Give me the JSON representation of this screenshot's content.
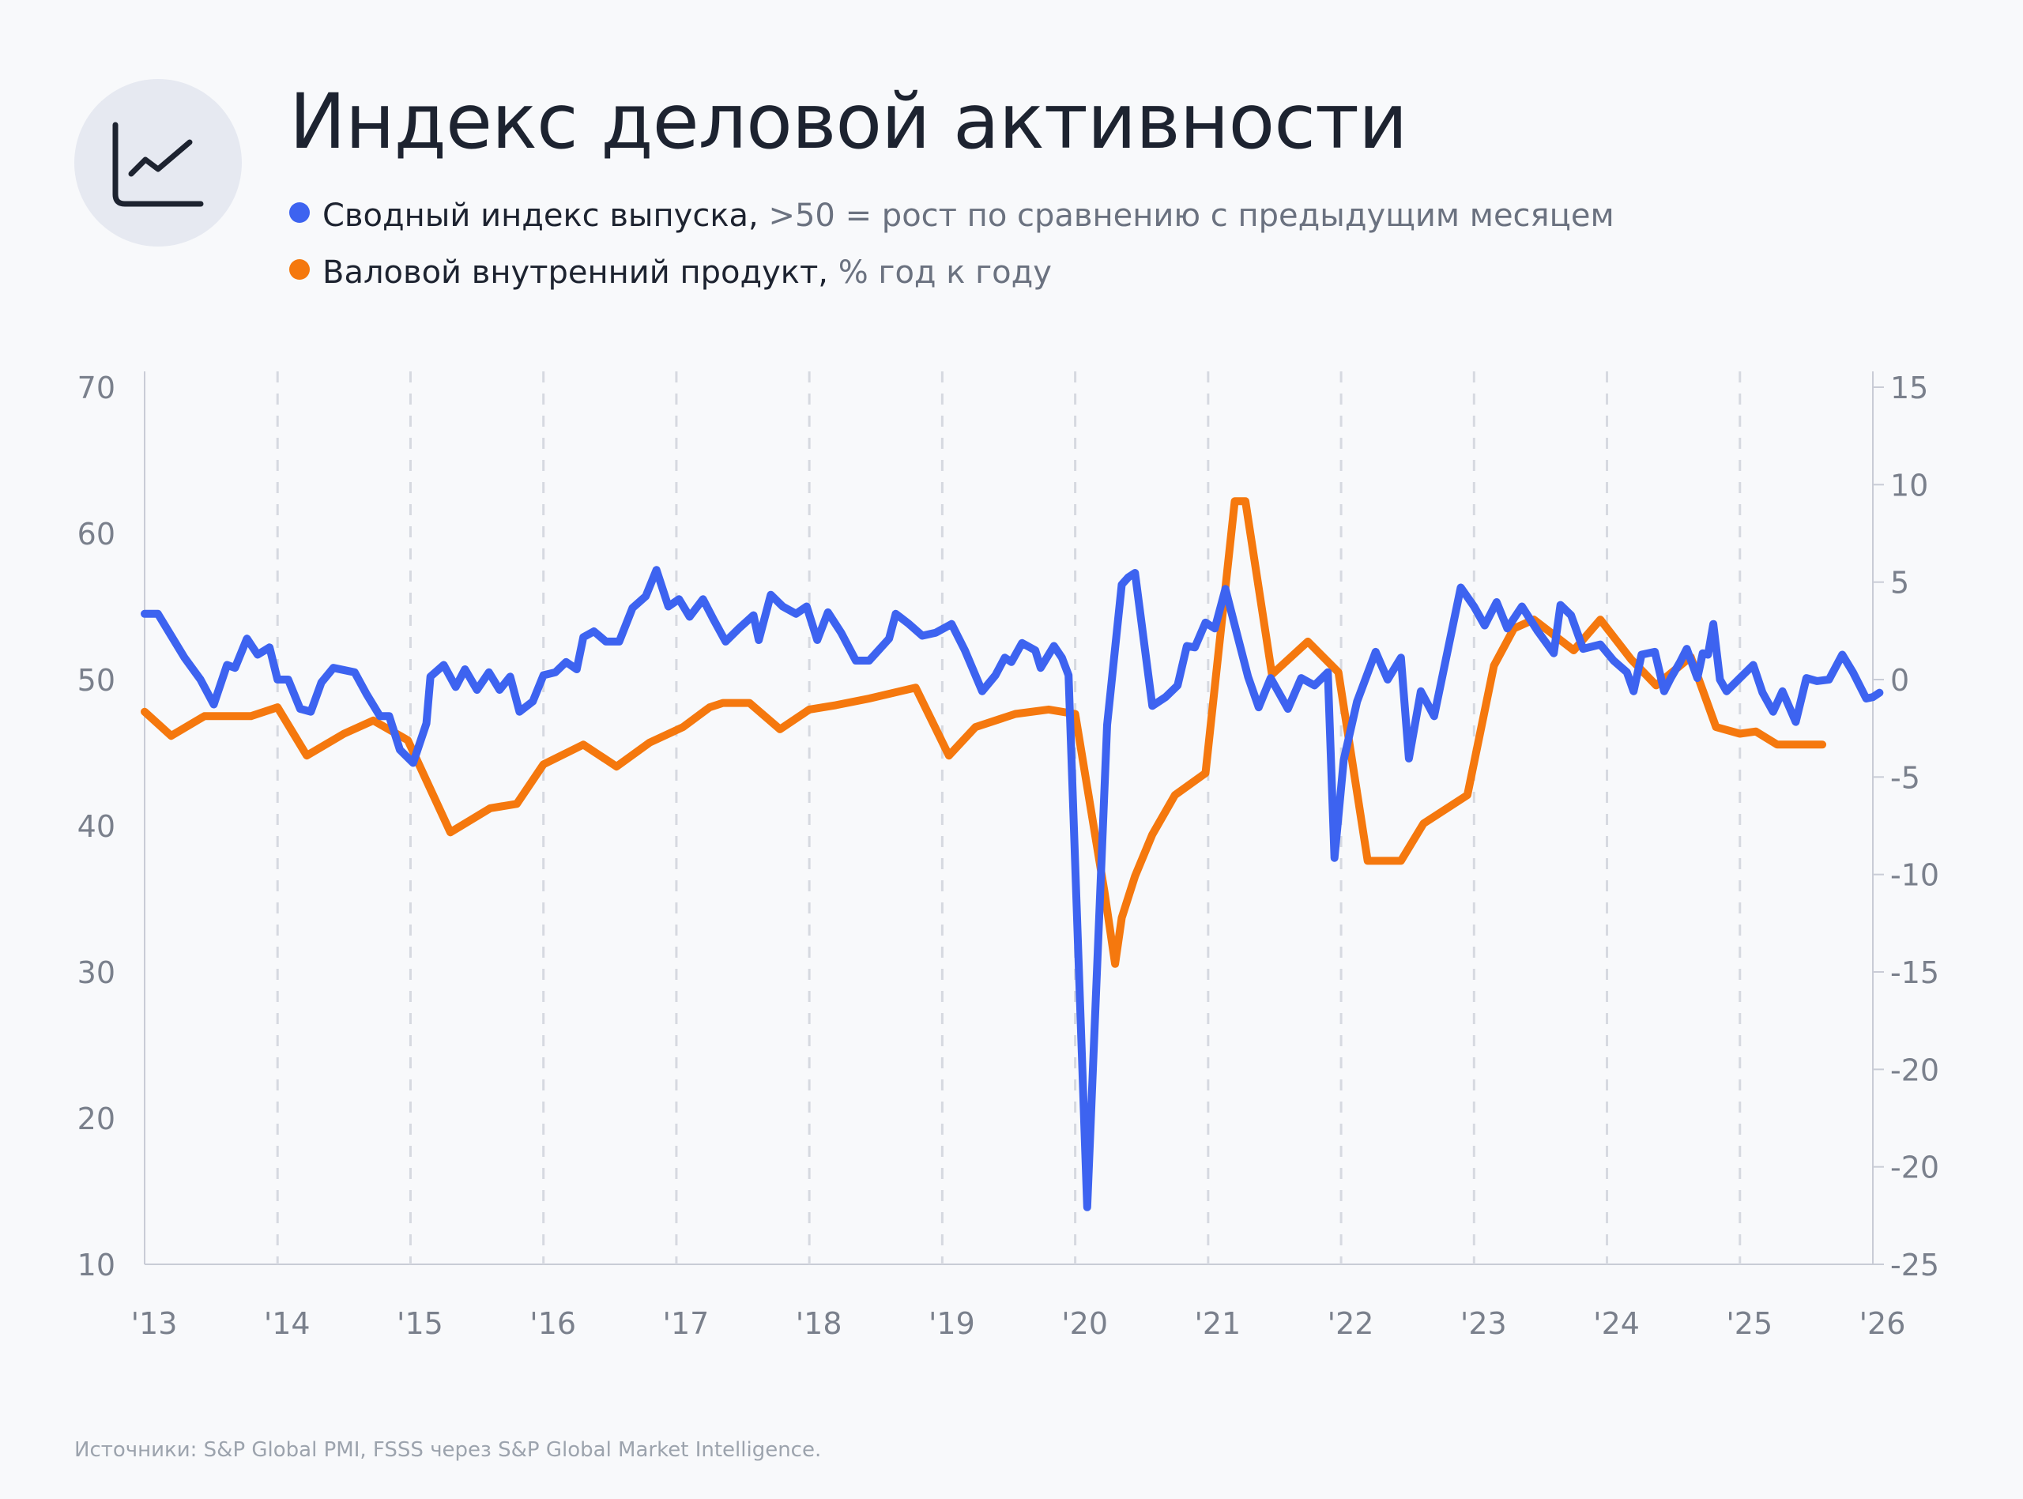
{
  "header": {
    "title": "Индекс деловой активности",
    "logo_icon": "line-chart-icon"
  },
  "legend": [
    {
      "label": "Сводный индекс выпуска,",
      "note": ">50 = рост по сравнению с предыдущим месяцем",
      "color": "#3d63f0"
    },
    {
      "label": "Валовой внутренний продукт,",
      "note": "% год к году",
      "color": "#f5780e"
    }
  ],
  "footer": {
    "source": "Источники: S&P Global PMI, FSSS через S&P Global Market Intelligence."
  },
  "chart_data": {
    "type": "line",
    "x_tick_labels": [
      "'13",
      "'14",
      "'15",
      "'16",
      "'17",
      "'18",
      "'19",
      "'20",
      "'21",
      "'22",
      "'23",
      "'24",
      "'25",
      "'26"
    ],
    "x_range": [
      2013.0,
      2026.0
    ],
    "grid": "vertical dashed lines at each year",
    "y_left": {
      "range": [
        10,
        70
      ],
      "ticks": [
        "70",
        "60",
        "50",
        "40",
        "30",
        "20",
        "10"
      ]
    },
    "y_right": {
      "range": [
        -25,
        15
      ],
      "ticks": [
        "15",
        "10",
        "5",
        "0",
        "-5",
        "-10",
        "-15",
        "-20",
        "-20",
        "-25"
      ]
    },
    "series": [
      {
        "name": "Сводный индекс выпуска",
        "axis": "left",
        "color": "#3d63f0",
        "points": [
          [
            2013.0,
            54.5
          ],
          [
            2013.1,
            54.5
          ],
          [
            2013.2,
            53.0
          ],
          [
            2013.3,
            51.5
          ],
          [
            2013.42,
            50.0
          ],
          [
            2013.52,
            48.3
          ],
          [
            2013.62,
            51.0
          ],
          [
            2013.68,
            50.8
          ],
          [
            2013.77,
            52.8
          ],
          [
            2013.85,
            51.7
          ],
          [
            2013.94,
            52.2
          ],
          [
            2014.0,
            50.0
          ],
          [
            2014.08,
            50.0
          ],
          [
            2014.17,
            48.0
          ],
          [
            2014.25,
            47.8
          ],
          [
            2014.33,
            49.8
          ],
          [
            2014.42,
            50.8
          ],
          [
            2014.58,
            50.5
          ],
          [
            2014.67,
            49.0
          ],
          [
            2014.77,
            47.5
          ],
          [
            2014.84,
            47.5
          ],
          [
            2014.92,
            45.2
          ],
          [
            2015.02,
            44.3
          ],
          [
            2015.12,
            47.0
          ],
          [
            2015.15,
            50.2
          ],
          [
            2015.25,
            51.0
          ],
          [
            2015.34,
            49.5
          ],
          [
            2015.41,
            50.7
          ],
          [
            2015.5,
            49.3
          ],
          [
            2015.59,
            50.5
          ],
          [
            2015.67,
            49.3
          ],
          [
            2015.75,
            50.2
          ],
          [
            2015.82,
            47.8
          ],
          [
            2015.92,
            48.5
          ],
          [
            2016.0,
            50.3
          ],
          [
            2016.09,
            50.5
          ],
          [
            2016.17,
            51.2
          ],
          [
            2016.25,
            50.7
          ],
          [
            2016.3,
            52.9
          ],
          [
            2016.38,
            53.3
          ],
          [
            2016.47,
            52.6
          ],
          [
            2016.57,
            52.6
          ],
          [
            2016.67,
            54.9
          ],
          [
            2016.77,
            55.7
          ],
          [
            2016.85,
            57.5
          ],
          [
            2016.94,
            55.0
          ],
          [
            2017.02,
            55.5
          ],
          [
            2017.1,
            54.3
          ],
          [
            2017.2,
            55.5
          ],
          [
            2017.28,
            54.1
          ],
          [
            2017.37,
            52.6
          ],
          [
            2017.47,
            53.5
          ],
          [
            2017.58,
            54.4
          ],
          [
            2017.62,
            52.7
          ],
          [
            2017.71,
            55.8
          ],
          [
            2017.8,
            55.0
          ],
          [
            2017.9,
            54.5
          ],
          [
            2017.98,
            55.0
          ],
          [
            2018.06,
            52.7
          ],
          [
            2018.14,
            54.6
          ],
          [
            2018.24,
            53.2
          ],
          [
            2018.35,
            51.3
          ],
          [
            2018.45,
            51.3
          ],
          [
            2018.6,
            52.8
          ],
          [
            2018.65,
            54.5
          ],
          [
            2018.75,
            53.8
          ],
          [
            2018.85,
            53.0
          ],
          [
            2018.95,
            53.2
          ],
          [
            2019.07,
            53.8
          ],
          [
            2019.17,
            52.0
          ],
          [
            2019.3,
            49.2
          ],
          [
            2019.4,
            50.3
          ],
          [
            2019.47,
            51.5
          ],
          [
            2019.52,
            51.2
          ],
          [
            2019.6,
            52.5
          ],
          [
            2019.7,
            52.0
          ],
          [
            2019.74,
            50.8
          ],
          [
            2019.84,
            52.3
          ],
          [
            2019.9,
            51.5
          ],
          [
            2019.95,
            50.3
          ],
          [
            2020.09,
            13.9
          ],
          [
            2020.24,
            46.9
          ],
          [
            2020.35,
            56.5
          ],
          [
            2020.4,
            57.0
          ],
          [
            2020.45,
            57.3
          ],
          [
            2020.58,
            48.2
          ],
          [
            2020.68,
            48.8
          ],
          [
            2020.77,
            49.6
          ],
          [
            2020.84,
            52.3
          ],
          [
            2020.9,
            52.2
          ],
          [
            2020.98,
            53.9
          ],
          [
            2021.05,
            53.5
          ],
          [
            2021.13,
            56.2
          ],
          [
            2021.22,
            53.0
          ],
          [
            2021.3,
            50.2
          ],
          [
            2021.38,
            48.1
          ],
          [
            2021.47,
            50.1
          ],
          [
            2021.6,
            48.0
          ],
          [
            2021.7,
            50.1
          ],
          [
            2021.8,
            49.6
          ],
          [
            2021.9,
            50.5
          ],
          [
            2021.95,
            37.8
          ],
          [
            2022.02,
            44.5
          ],
          [
            2022.12,
            48.5
          ],
          [
            2022.26,
            51.9
          ],
          [
            2022.35,
            50.0
          ],
          [
            2022.45,
            51.5
          ],
          [
            2022.51,
            44.6
          ],
          [
            2022.6,
            49.2
          ],
          [
            2022.7,
            47.5
          ],
          [
            2022.9,
            56.3
          ],
          [
            2023.0,
            55.0
          ],
          [
            2023.08,
            53.7
          ],
          [
            2023.17,
            55.3
          ],
          [
            2023.25,
            53.5
          ],
          [
            2023.36,
            55.0
          ],
          [
            2023.48,
            53.3
          ],
          [
            2023.6,
            51.8
          ],
          [
            2023.65,
            55.1
          ],
          [
            2023.73,
            54.4
          ],
          [
            2023.82,
            52.1
          ],
          [
            2023.95,
            52.4
          ],
          [
            2024.05,
            51.3
          ],
          [
            2024.15,
            50.5
          ],
          [
            2024.2,
            49.2
          ],
          [
            2024.26,
            51.7
          ],
          [
            2024.36,
            51.9
          ],
          [
            2024.43,
            49.2
          ],
          [
            2024.48,
            50.1
          ],
          [
            2024.55,
            51.2
          ],
          [
            2024.6,
            52.1
          ],
          [
            2024.68,
            50.1
          ],
          [
            2024.72,
            51.8
          ],
          [
            2024.76,
            51.7
          ],
          [
            2024.8,
            53.8
          ],
          [
            2024.85,
            50.0
          ],
          [
            2024.9,
            49.2
          ],
          [
            2025.0,
            50.1
          ],
          [
            2025.1,
            51.0
          ],
          [
            2025.17,
            49.1
          ],
          [
            2025.25,
            47.8
          ],
          [
            2025.32,
            49.2
          ],
          [
            2025.42,
            47.1
          ],
          [
            2025.5,
            50.1
          ],
          [
            2025.58,
            49.9
          ],
          [
            2025.67,
            50.0
          ],
          [
            2025.77,
            51.7
          ],
          [
            2025.85,
            50.5
          ],
          [
            2025.95,
            48.7
          ],
          [
            2026.0,
            48.8
          ],
          [
            2026.05,
            49.1
          ]
        ]
      },
      {
        "name": "Валовой внутренний продукт",
        "axis": "right",
        "color": "#f5780e",
        "points": [
          [
            2013.0,
            0.2
          ],
          [
            2013.2,
            -0.9
          ],
          [
            2013.45,
            0.0
          ],
          [
            2013.8,
            0.0
          ],
          [
            2014.0,
            0.4
          ],
          [
            2014.22,
            -1.8
          ],
          [
            2014.5,
            -0.8
          ],
          [
            2014.72,
            -0.2
          ],
          [
            2014.98,
            -1.1
          ],
          [
            2015.3,
            -5.3
          ],
          [
            2015.6,
            -4.2
          ],
          [
            2015.8,
            -4.0
          ],
          [
            2016.0,
            -2.2
          ],
          [
            2016.3,
            -1.3
          ],
          [
            2016.55,
            -2.3
          ],
          [
            2016.8,
            -1.2
          ],
          [
            2017.05,
            -0.5
          ],
          [
            2017.25,
            0.4
          ],
          [
            2017.35,
            0.6
          ],
          [
            2017.55,
            0.6
          ],
          [
            2017.78,
            -0.6
          ],
          [
            2018.0,
            0.3
          ],
          [
            2018.2,
            0.5
          ],
          [
            2018.45,
            0.8
          ],
          [
            2018.8,
            1.3
          ],
          [
            2019.05,
            -1.8
          ],
          [
            2019.25,
            -0.5
          ],
          [
            2019.55,
            0.1
          ],
          [
            2019.8,
            0.3
          ],
          [
            2020.0,
            0.1
          ],
          [
            2020.22,
            -8.0
          ],
          [
            2020.3,
            -11.3
          ],
          [
            2020.35,
            -9.2
          ],
          [
            2020.45,
            -7.3
          ],
          [
            2020.58,
            -5.4
          ],
          [
            2020.75,
            -3.6
          ],
          [
            2020.98,
            -2.6
          ],
          [
            2021.2,
            9.8
          ],
          [
            2021.28,
            9.8
          ],
          [
            2021.48,
            1.9
          ],
          [
            2021.75,
            3.4
          ],
          [
            2021.98,
            2.0
          ],
          [
            2022.2,
            -6.6
          ],
          [
            2022.45,
            -6.6
          ],
          [
            2022.62,
            -4.9
          ],
          [
            2022.95,
            -3.6
          ],
          [
            2023.15,
            2.3
          ],
          [
            2023.3,
            4.0
          ],
          [
            2023.45,
            4.4
          ],
          [
            2023.75,
            3.0
          ],
          [
            2023.95,
            4.4
          ],
          [
            2024.18,
            2.6
          ],
          [
            2024.37,
            1.4
          ],
          [
            2024.63,
            2.7
          ],
          [
            2024.82,
            -0.5
          ],
          [
            2025.0,
            -0.8
          ],
          [
            2025.12,
            -0.7
          ],
          [
            2025.28,
            -1.3
          ],
          [
            2025.62,
            -1.3
          ]
        ]
      }
    ]
  }
}
